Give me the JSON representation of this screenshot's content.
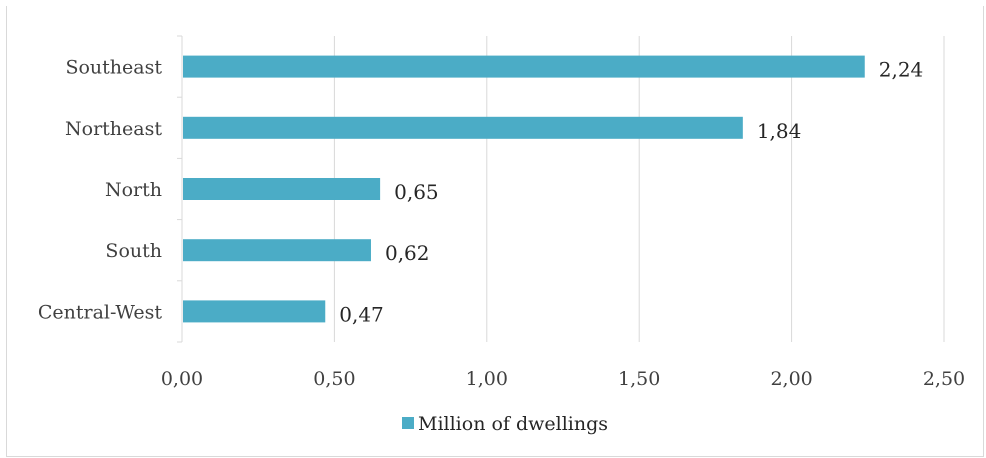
{
  "chart_data": {
    "type": "bar",
    "orientation": "horizontal",
    "title": "",
    "categories": [
      "Southeast",
      "Northeast",
      "North",
      "South",
      "Central-West"
    ],
    "series": [
      {
        "name": "Million of dwellings",
        "values": [
          2.24,
          1.84,
          0.65,
          0.62,
          0.47
        ],
        "value_labels": [
          "2,24",
          "1,84",
          "0,65",
          "0,62",
          "0,47"
        ],
        "color": "#4bacc6"
      }
    ],
    "xlim": [
      0,
      2.5
    ],
    "x_ticks": [
      0,
      0.5,
      1.0,
      1.5,
      2.0,
      2.5
    ],
    "x_tick_labels": [
      "0,00",
      "0,50",
      "1,00",
      "1,50",
      "2,00",
      "2,50"
    ],
    "xlabel": "",
    "ylabel": "",
    "grid": true,
    "legend_position": "bottom"
  }
}
